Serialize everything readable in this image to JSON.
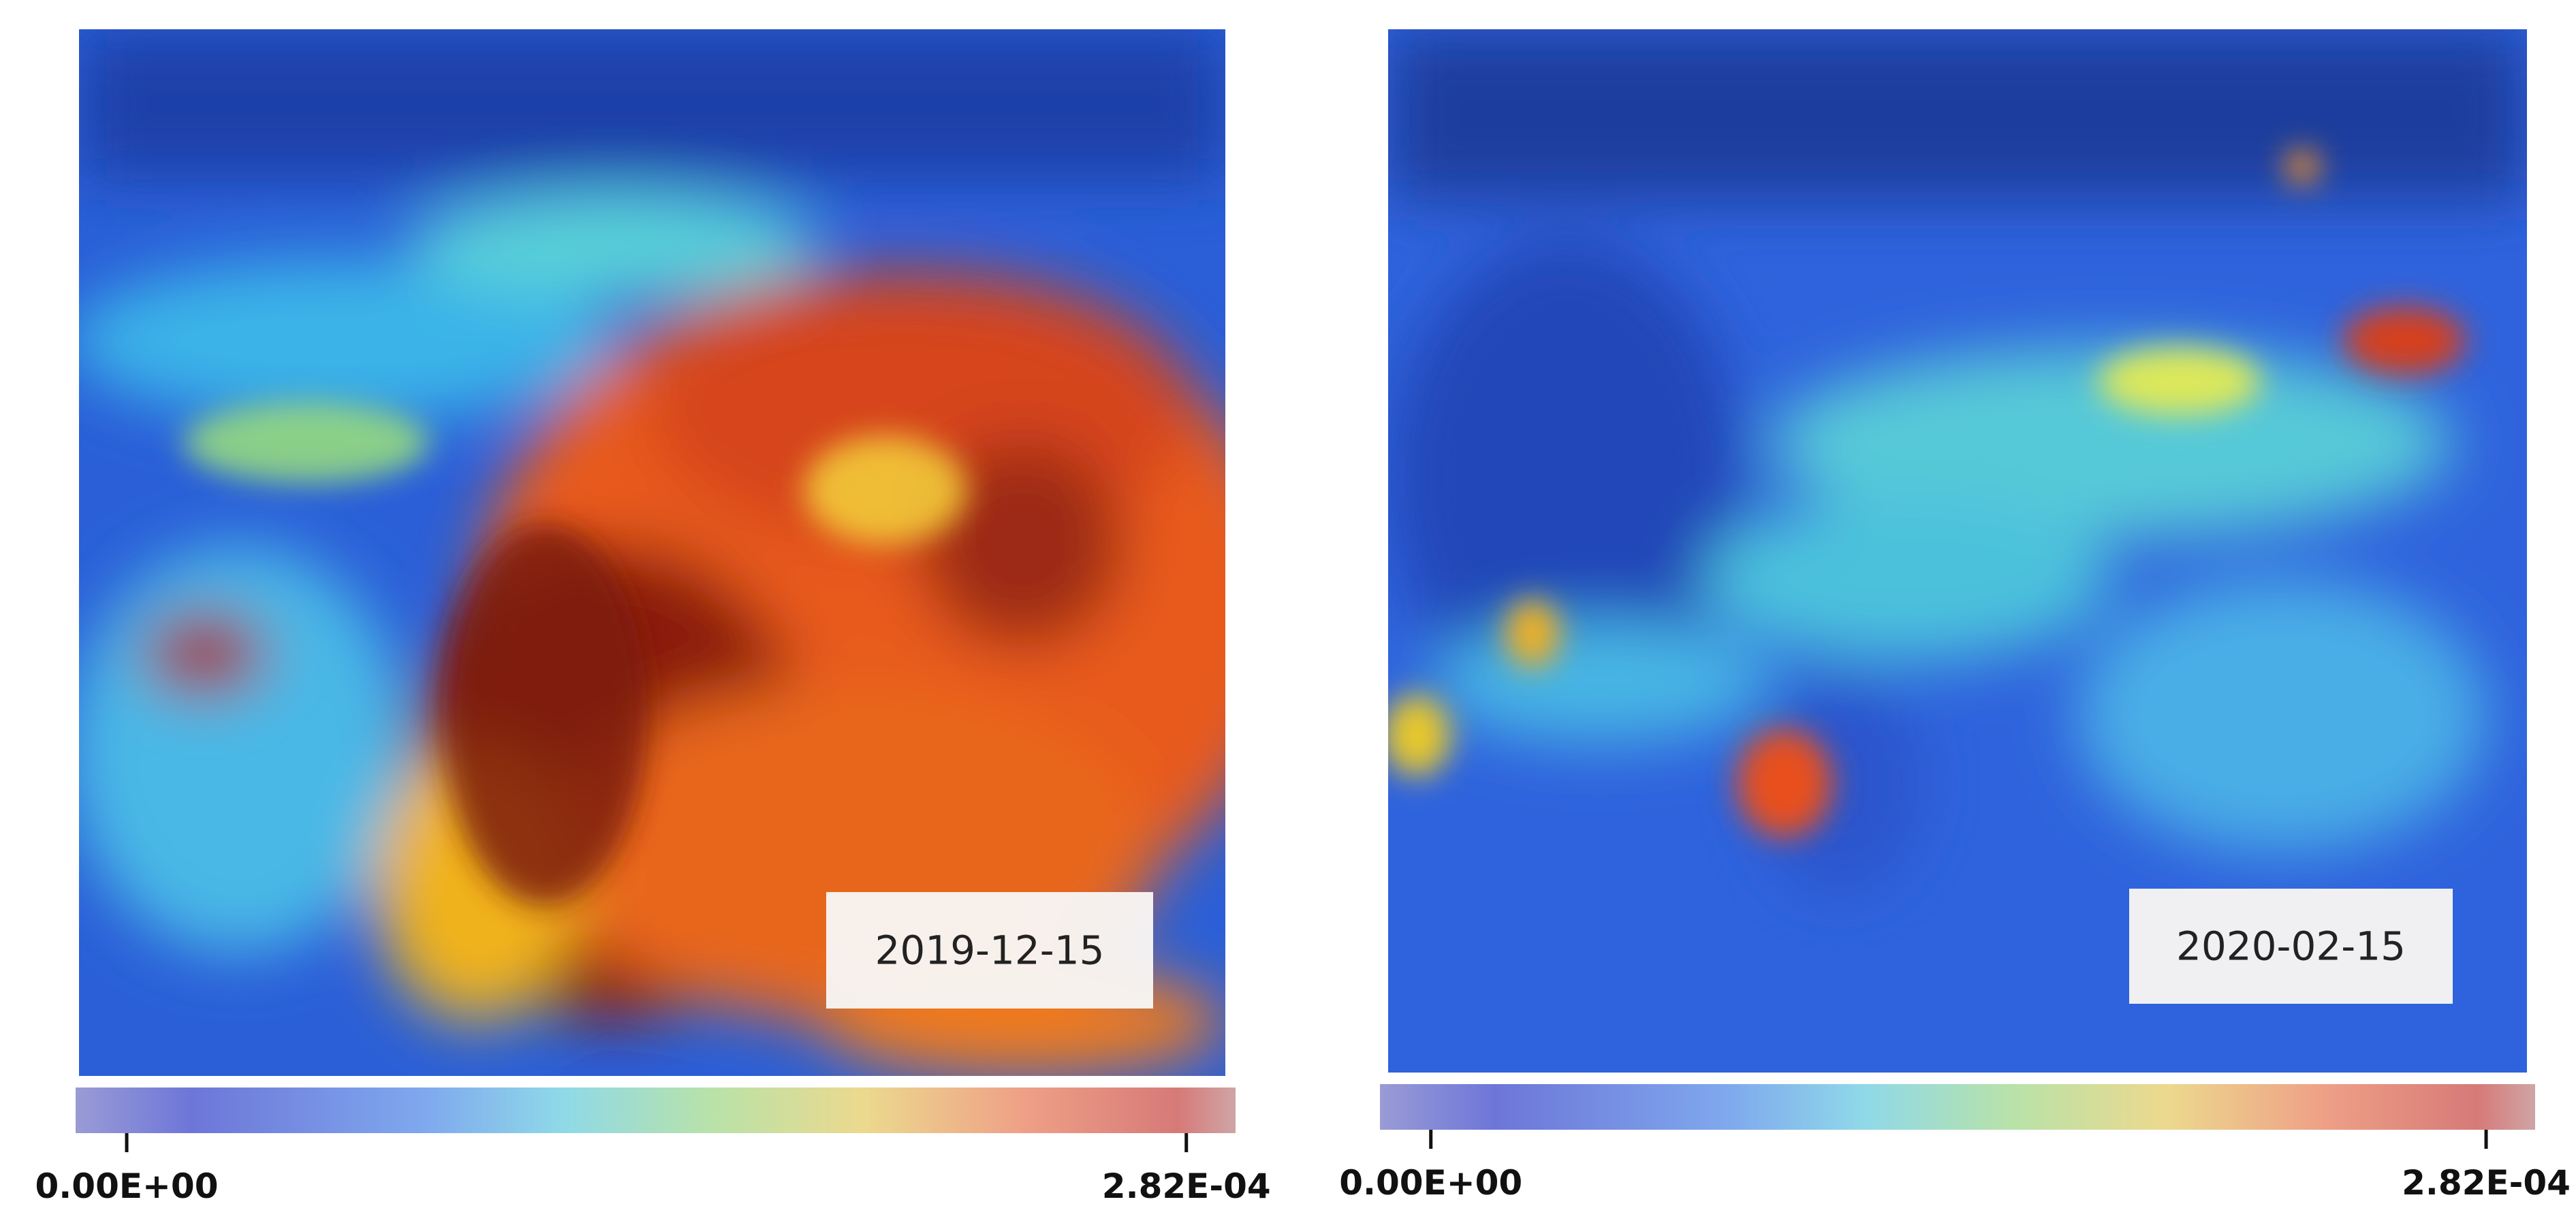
{
  "panels": [
    {
      "date": "2019-12-15",
      "colorbar": {
        "clim": [
          -1.36e-05,
          0.0002951
        ],
        "ticks": [
          {
            "value": 0,
            "label": "0.00E+00"
          },
          {
            "value": 0.000282,
            "label": "2.82E-04"
          }
        ]
      }
    },
    {
      "date": "2020-02-15",
      "colorbar": {
        "clim": [
          -1.36e-05,
          0.0002951
        ],
        "ticks": [
          {
            "value": 0,
            "label": "0.00E+00"
          },
          {
            "value": 0.000282,
            "label": "2.82E-04"
          }
        ]
      }
    }
  ]
}
